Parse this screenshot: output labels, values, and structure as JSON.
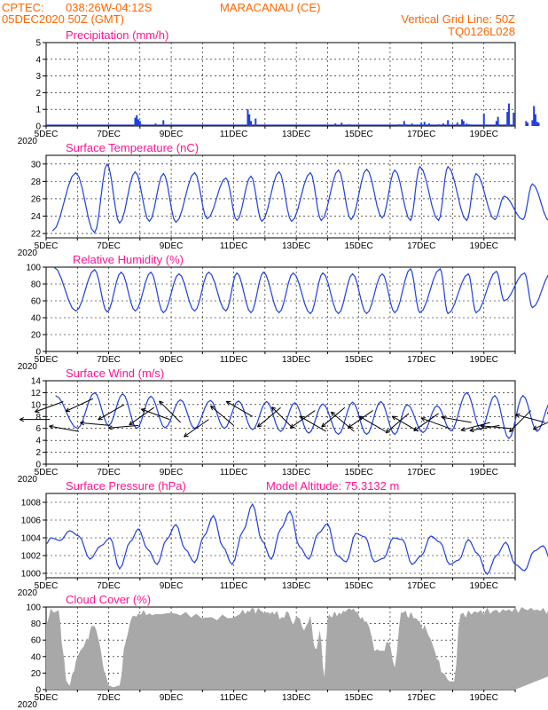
{
  "header": {
    "source": "CPTEC:",
    "coords": "038:26W-04:12S",
    "location": "MARACANAU (CE)",
    "run": "05DEC2020 50Z (GMT)",
    "grid_note": "Vertical Grid Line: 50Z",
    "model_code": "TQ0126L028"
  },
  "colors": {
    "series": "#1f3fe0",
    "axis": "#000000",
    "title": "#ff1493",
    "header": "#ff6600",
    "cloud": "#a8a8a8",
    "arrow": "#000000"
  },
  "x_axis": {
    "start": "05DEC2020",
    "end": "20DEC2020",
    "unit": "days",
    "tick_labels": [
      "5DEC",
      "7DEC",
      "9DEC",
      "11DEC",
      "13DEC",
      "15DEC",
      "17DEC",
      "19DEC"
    ],
    "year_label": "2020"
  },
  "chart_data": [
    {
      "id": "precip",
      "type": "bar",
      "title": "Precipitation  (mm/h)",
      "ylim": [
        0,
        5
      ],
      "yticks": [
        "0",
        "1",
        "2",
        "3",
        "4",
        "5"
      ],
      "grid": true,
      "x": [
        2.85,
        2.9,
        2.95,
        3.0,
        3.05,
        3.5,
        3.75,
        6.45,
        6.5,
        6.55,
        6.7,
        9.25,
        9.45,
        9.7,
        11.3,
        11.45,
        11.5,
        11.7,
        12.0,
        12.1,
        12.25,
        12.55,
        12.7,
        12.85,
        13.15,
        13.3,
        13.35,
        13.45,
        13.55,
        14.0,
        14.4,
        14.45,
        14.75,
        14.8,
        14.95,
        15.35,
        15.4,
        15.55,
        15.6,
        15.65,
        15.7,
        15.75,
        16.15,
        16.65,
        16.7,
        16.75,
        16.85,
        16.95,
        17.05,
        17.2,
        18.45,
        18.65,
        18.7,
        18.75,
        18.8
      ],
      "values": [
        0.5,
        0.65,
        0.4,
        0.3,
        0.1,
        0.15,
        0.35,
        1.0,
        0.7,
        0.3,
        0.45,
        0.15,
        0.2,
        0.1,
        0.1,
        0.3,
        0.1,
        0.15,
        0.2,
        0.25,
        0.15,
        0.1,
        0.15,
        0.35,
        0.2,
        0.4,
        0.3,
        0.15,
        0.1,
        0.75,
        0.3,
        0.55,
        0.85,
        1.35,
        0.8,
        0.3,
        0.2,
        0.35,
        1.2,
        0.7,
        0.25,
        0.2,
        0.2,
        1.2,
        1.1,
        0.6,
        0.3,
        0.3,
        0.2,
        0.25,
        0.6,
        1.3,
        1.15,
        1.4,
        1.2
      ]
    },
    {
      "id": "temperature",
      "type": "line",
      "title": "Surface Temperature (nC)",
      "ylim": [
        21.5,
        31
      ],
      "yticks": [
        "22",
        "24",
        "26",
        "28",
        "30"
      ],
      "grid": true,
      "peak_day": [
        0.95,
        1.95,
        2.85,
        3.75,
        4.75,
        5.75,
        6.55,
        7.45,
        8.45,
        9.35,
        10.25,
        11.15,
        11.95,
        12.85,
        13.75,
        14.65,
        15.55,
        16.45,
        17.35,
        18.25,
        19.2
      ],
      "peak_temp": [
        29.0,
        30.0,
        29.1,
        28.9,
        29.0,
        28.4,
        28.6,
        29.1,
        29.0,
        29.3,
        29.4,
        29.3,
        29.7,
        29.7,
        28.9,
        26.3,
        27.7,
        26.7,
        27.0,
        26.9,
        27.2
      ],
      "trough_day": [
        0.2,
        1.55,
        2.35,
        3.3,
        4.15,
        5.15,
        6.1,
        6.9,
        7.85,
        8.8,
        9.75,
        10.75,
        11.65,
        12.55,
        13.45,
        14.35,
        15.25,
        16.1,
        17.05,
        17.9,
        18.75,
        19.95
      ],
      "trough_temp": [
        22.3,
        22.1,
        23.2,
        23.4,
        23.3,
        23.7,
        23.5,
        23.4,
        23.4,
        23.5,
        23.6,
        23.8,
        23.5,
        23.5,
        23.5,
        23.6,
        23.6,
        23.4,
        23.4,
        24.0,
        24.0,
        25.5
      ]
    },
    {
      "id": "humidity",
      "type": "line",
      "title": "Relative Humidity (%)",
      "ylim": [
        0,
        100
      ],
      "yticks": [
        "0",
        "20",
        "40",
        "60",
        "80",
        "100"
      ],
      "grid": true,
      "trough_day": [
        0.95,
        1.95,
        2.85,
        3.75,
        4.75,
        5.75,
        6.55,
        7.45,
        8.45,
        9.35,
        10.25,
        11.15,
        11.95,
        12.85,
        13.75,
        14.65,
        15.55,
        16.45,
        17.35,
        18.25,
        19.2
      ],
      "trough_rh": [
        48,
        47,
        48,
        46,
        48,
        48,
        46,
        46,
        45,
        45,
        45,
        46,
        46,
        45,
        46,
        60,
        52,
        57,
        56,
        57,
        58
      ],
      "peak_day": [
        0.25,
        1.55,
        2.4,
        3.35,
        4.25,
        5.2,
        6.1,
        6.95,
        7.9,
        8.85,
        9.8,
        10.75,
        11.65,
        12.6,
        13.5,
        14.4,
        15.3,
        16.15,
        17.1,
        17.95,
        18.8,
        19.95
      ],
      "peak_rh": [
        100,
        97,
        94,
        94,
        92,
        94,
        93,
        94,
        93,
        93,
        92,
        92,
        98,
        98,
        92,
        95,
        93,
        93,
        93,
        93,
        90,
        77
      ]
    },
    {
      "id": "wind",
      "type": "line",
      "title": "Surface Wind  (m/s)",
      "ylim": [
        0,
        14
      ],
      "yticks": [
        "0",
        "2",
        "4",
        "6",
        "8",
        "10",
        "12",
        "14"
      ],
      "grid": true,
      "peak_day": [
        0.3,
        1.55,
        2.45,
        3.35,
        4.3,
        5.25,
        6.15,
        7.05,
        7.95,
        8.85,
        9.8,
        10.7,
        11.55,
        12.5,
        13.45,
        14.35,
        15.25,
        16.15,
        17.05,
        18.0,
        18.9
      ],
      "peak_speed": [
        11.5,
        12.0,
        11.8,
        11.4,
        10.8,
        10.7,
        10.6,
        10.5,
        10.3,
        10.1,
        10.4,
        10.5,
        10.0,
        9.8,
        12.0,
        11.5,
        11.5,
        10.5,
        9.0,
        9.5,
        10.3
      ],
      "trough_day": [
        1.0,
        2.0,
        2.9,
        3.8,
        4.75,
        5.7,
        6.6,
        7.5,
        8.4,
        9.35,
        10.25,
        11.15,
        12.05,
        12.95,
        13.9,
        14.8,
        15.7,
        16.6,
        17.55,
        18.45,
        19.4,
        19.95
      ],
      "trough_speed": [
        6.0,
        6.5,
        6.0,
        6.1,
        6.0,
        6.0,
        5.8,
        5.5,
        5.2,
        5.0,
        5.0,
        5.0,
        5.3,
        5.6,
        5.8,
        4.3,
        5.5,
        5.5,
        4.5,
        4.0,
        1.4,
        4.5
      ],
      "arrows": [
        {
          "day": 0.12,
          "speed": 7.5,
          "dir": 180
        },
        {
          "day": 0.55,
          "speed": 10.5,
          "dir": 200
        },
        {
          "day": 1.05,
          "speed": 5.5,
          "dir": 170
        },
        {
          "day": 1.5,
          "speed": 11.0,
          "dir": 205
        },
        {
          "day": 2.05,
          "speed": 6.5,
          "dir": 175
        },
        {
          "day": 2.5,
          "speed": 10.0,
          "dir": 210
        },
        {
          "day": 2.95,
          "speed": 6.5,
          "dir": 185
        },
        {
          "day": 3.45,
          "speed": 9.5,
          "dir": 215
        },
        {
          "day": 3.95,
          "speed": 7.5,
          "dir": 160
        },
        {
          "day": 4.3,
          "speed": 7.0,
          "dir": 135
        },
        {
          "day": 5.2,
          "speed": 7.5,
          "dir": 215
        },
        {
          "day": 6.0,
          "speed": 6.5,
          "dir": 140
        },
        {
          "day": 6.6,
          "speed": 8.0,
          "dir": 150
        },
        {
          "day": 7.5,
          "speed": 9.5,
          "dir": 220
        },
        {
          "day": 7.9,
          "speed": 6.0,
          "dir": 135
        },
        {
          "day": 8.6,
          "speed": 9.0,
          "dir": 215
        },
        {
          "day": 8.95,
          "speed": 5.5,
          "dir": 150
        },
        {
          "day": 9.55,
          "speed": 9.5,
          "dir": 220
        },
        {
          "day": 9.85,
          "speed": 5.5,
          "dir": 140
        },
        {
          "day": 10.45,
          "speed": 9.0,
          "dir": 215
        },
        {
          "day": 10.85,
          "speed": 5.5,
          "dir": 150
        },
        {
          "day": 11.6,
          "speed": 8.5,
          "dir": 220
        },
        {
          "day": 11.9,
          "speed": 5.5,
          "dir": 150
        },
        {
          "day": 12.55,
          "speed": 8.5,
          "dir": 215
        },
        {
          "day": 12.9,
          "speed": 6.0,
          "dir": 160
        },
        {
          "day": 13.6,
          "speed": 7.0,
          "dir": 170
        },
        {
          "day": 14.2,
          "speed": 7.0,
          "dir": 195
        },
        {
          "day": 14.5,
          "speed": 6.5,
          "dir": 190
        },
        {
          "day": 14.85,
          "speed": 6.0,
          "dir": 175
        },
        {
          "day": 15.5,
          "speed": 9.0,
          "dir": 225
        },
        {
          "day": 15.95,
          "speed": 7.0,
          "dir": 165
        },
        {
          "day": 16.45,
          "speed": 8.0,
          "dir": 205
        },
        {
          "day": 16.9,
          "speed": 6.5,
          "dir": 155
        },
        {
          "day": 17.4,
          "speed": 7.0,
          "dir": 195
        },
        {
          "day": 18.05,
          "speed": 7.5,
          "dir": 200
        },
        {
          "day": 18.5,
          "speed": 6.5,
          "dir": 140
        },
        {
          "day": 19.25,
          "speed": 7.0,
          "dir": 180
        },
        {
          "day": 19.85,
          "speed": 6.5,
          "dir": 120
        }
      ]
    },
    {
      "id": "pressure",
      "type": "line",
      "title": "Surface Pressure (hPa)",
      "annotation": "Model Altitude: 75.3132 m",
      "ylim": [
        999.5,
        1009
      ],
      "yticks": [
        "1000",
        "1002",
        "1004",
        "1006",
        "1008"
      ],
      "grid": true,
      "day": [
        0.0,
        0.15,
        0.45,
        0.75,
        1.05,
        1.4,
        1.75,
        2.05,
        2.35,
        2.7,
        2.95,
        3.25,
        3.55,
        3.85,
        4.15,
        4.45,
        4.75,
        5.05,
        5.35,
        5.65,
        5.95,
        6.3,
        6.6,
        6.9,
        7.2,
        7.5,
        7.8,
        8.1,
        8.4,
        8.7,
        9.0,
        9.3,
        9.6,
        9.9,
        10.2,
        10.5,
        10.8,
        11.1,
        11.4,
        11.7,
        12.0,
        12.3,
        12.6,
        12.9,
        13.2,
        13.5,
        13.8,
        14.1,
        14.4,
        14.7,
        15.0,
        15.3,
        15.6,
        15.9,
        16.2,
        16.5,
        16.8,
        17.1,
        17.4,
        17.7,
        18.0,
        18.3,
        18.6,
        18.9,
        19.2,
        19.5,
        19.85,
        20.0
      ],
      "hpa": [
        1003.3,
        1004.0,
        1003.7,
        1004.8,
        1004.2,
        1001.6,
        1003.1,
        1004.0,
        1000.5,
        1003.6,
        1005.0,
        1002.7,
        1001.0,
        1003.8,
        1005.5,
        1002.7,
        1001.2,
        1004.2,
        1006.5,
        1003.0,
        1001.0,
        1004.8,
        1007.8,
        1003.7,
        1001.6,
        1005.0,
        1007.0,
        1003.0,
        1001.6,
        1004.5,
        1005.6,
        1002.0,
        1001.3,
        1004.5,
        1004.1,
        1001.3,
        1001.7,
        1004.0,
        1003.8,
        1001.0,
        1002.0,
        1004.2,
        1003.5,
        1001.0,
        1001.5,
        1003.8,
        1002.2,
        999.9,
        1002.0,
        1003.5,
        1001.0,
        1000.3,
        1002.5,
        1003.1,
        1000.8,
        1000.6,
        1003.5,
        1002.0,
        1000.2,
        1001.6,
        1003.1,
        1000.6,
        1001.2,
        1002.9,
        1001.4,
        1000.3,
        1003.2,
        1001.8
      ]
    },
    {
      "id": "cloud",
      "type": "area",
      "title": "Cloud Cover  (%)",
      "ylim": [
        0,
        100
      ],
      "yticks": [
        "0",
        "20",
        "40",
        "60",
        "80",
        "100"
      ],
      "grid": true,
      "day": [
        0.0,
        0.15,
        0.4,
        0.55,
        0.65,
        0.75,
        0.85,
        1.0,
        1.3,
        1.45,
        1.6,
        1.75,
        1.9,
        2.0,
        2.15,
        2.35,
        2.55,
        2.75,
        2.95,
        3.2,
        3.5,
        3.9,
        4.3,
        4.8,
        5.3,
        5.8,
        6.2,
        6.45,
        6.6,
        6.75,
        6.9,
        7.1,
        7.3,
        7.55,
        7.75,
        7.9,
        8.05,
        8.25,
        8.45,
        8.6,
        8.75,
        8.9,
        9.0,
        9.15,
        9.3,
        9.5,
        9.7,
        9.9,
        10.05,
        10.25,
        10.5,
        10.75,
        10.95,
        11.15,
        11.35,
        11.5,
        11.65,
        11.8,
        11.95,
        12.1,
        12.3,
        12.5,
        12.7,
        12.9,
        13.05,
        13.25,
        13.5,
        13.8,
        14.1,
        14.4,
        14.7,
        15.0,
        15.3,
        15.6,
        15.9,
        16.2,
        16.5,
        16.8,
        17.1,
        17.4,
        17.7,
        17.9,
        18.1,
        18.3,
        18.5,
        18.65,
        18.8,
        18.95,
        19.1,
        19.25,
        19.4,
        19.55,
        19.7,
        19.85,
        20.0
      ],
      "cover": [
        80,
        96,
        95,
        45,
        10,
        5,
        20,
        40,
        60,
        76,
        75,
        45,
        18,
        5,
        3,
        5,
        60,
        90,
        93,
        92,
        90,
        91,
        90,
        88,
        88,
        90,
        92,
        96,
        98,
        96,
        96,
        94,
        92,
        88,
        95,
        78,
        92,
        75,
        90,
        45,
        70,
        15,
        85,
        92,
        90,
        92,
        95,
        93,
        90,
        85,
        50,
        45,
        60,
        30,
        95,
        92,
        90,
        88,
        80,
        75,
        60,
        40,
        20,
        10,
        10,
        90,
        93,
        94,
        95,
        95,
        96,
        97,
        98,
        97,
        96,
        97,
        97,
        98,
        97,
        96,
        96,
        93,
        88,
        85,
        92,
        70,
        60,
        30,
        80,
        92,
        96,
        93,
        88,
        82,
        80
      ]
    }
  ]
}
